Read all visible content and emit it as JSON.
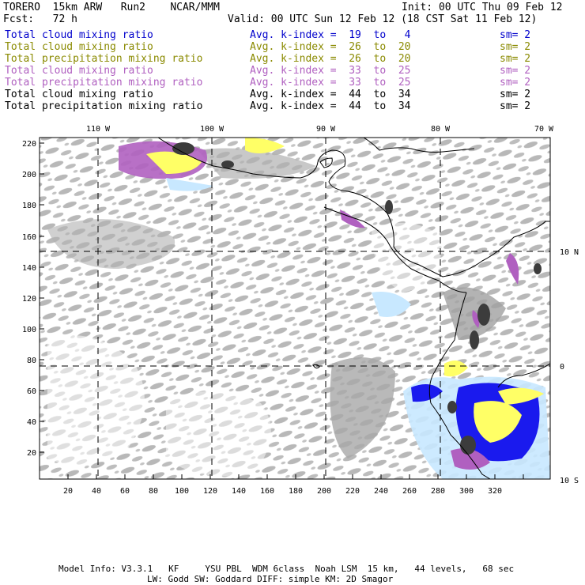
{
  "header": {
    "model": "TORERO  15km ARW   Run2    NCAR/MMM",
    "init": "Init: 00 UTC Thu 09 Feb 12",
    "fcst": "Fcst:   72 h",
    "valid": "Valid: 00 UTC Sun 12 Feb 12 (18 CST Sat 11 Feb 12)"
  },
  "legend": [
    {
      "field": "Total cloud mixing ratio",
      "range": "Avg. k-index =  19  to   4",
      "sm": "sm= 2",
      "color": "#0000cc"
    },
    {
      "field": "Total cloud mixing ratio",
      "range": "Avg. k-index =  26  to  20",
      "sm": "sm= 2",
      "color": "#8a8a00"
    },
    {
      "field": "Total precipitation mixing ratio",
      "range": "Avg. k-index =  26  to  20",
      "sm": "sm= 2",
      "color": "#8a8a00"
    },
    {
      "field": "Total cloud mixing ratio",
      "range": "Avg. k-index =  33  to  25",
      "sm": "sm= 2",
      "color": "#b060c0"
    },
    {
      "field": "Total precipitation mixing ratio",
      "range": "Avg. k-index =  33  to  25",
      "sm": "sm= 2",
      "color": "#b060c0"
    },
    {
      "field": "Total cloud mixing ratio",
      "range": "Avg. k-index =  44  to  34",
      "sm": "sm= 2",
      "color": "#000000"
    },
    {
      "field": "Total precipitation mixing ratio",
      "range": "Avg. k-index =  44  to  34",
      "sm": "sm= 2",
      "color": "#000000"
    }
  ],
  "map": {
    "lon_labels": [
      "110 W",
      "100 W",
      "90 W",
      "80 W",
      "70 W"
    ],
    "lat_labels": [
      "10 N",
      "0",
      "10 S"
    ],
    "x_ticks": [
      "20",
      "40",
      "60",
      "80",
      "100",
      "120",
      "140",
      "160",
      "180",
      "200",
      "220",
      "240",
      "260",
      "280",
      "300",
      "320"
    ],
    "y_ticks": [
      "220",
      "200",
      "180",
      "160",
      "140",
      "120",
      "100",
      "80",
      "60",
      "40",
      "20"
    ],
    "colors": {
      "cloud": "#b4b4b4",
      "cloud_dark": "#8c8c8c",
      "core": "#3c3c3c",
      "blue": "#1a1aee",
      "light_blue": "#c8e8ff",
      "yellow": "#ffff66",
      "purple": "#b060c0",
      "coast": "#000000"
    }
  },
  "footer": {
    "line1": "Model Info: V3.3.1   KF     YSU PBL  WDM 6class  Noah LSM  15 km,   44 levels,   68 sec",
    "line2": "LW: Godd SW: Goddard DIFF: simple KM: 2D Smagor"
  }
}
